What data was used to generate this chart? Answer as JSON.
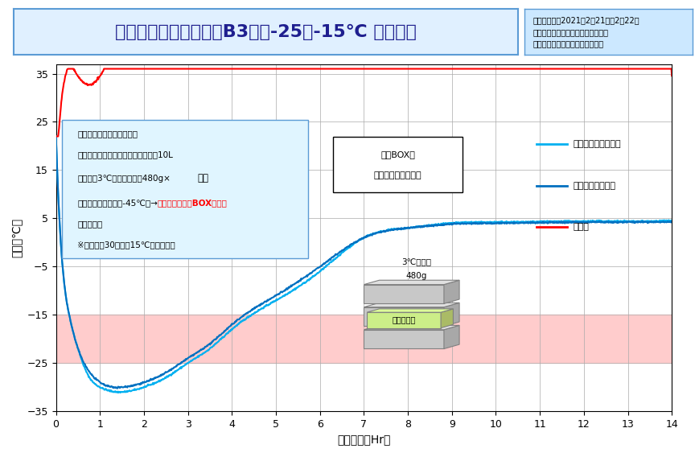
{
  "title": "定温輸送容器セット　B3案　-25～-15℃ 温度試験",
  "xlabel": "経過時間（Hr）",
  "ylabel": "温度（℃）",
  "xlim": [
    0,
    14
  ],
  "ylim": [
    -35,
    37
  ],
  "yticks": [
    -35,
    -25,
    -15,
    -5,
    5,
    15,
    25,
    35
  ],
  "xticks": [
    0,
    1,
    2,
    3,
    4,
    5,
    6,
    7,
    8,
    9,
    10,
    11,
    12,
    13,
    14
  ],
  "info_box": "試験実施日：2021年2月21日～2月22日\n試験実施場所　：　㈱スギヤマゲン\n試験実施者　：　㈱スギヤマゲン",
  "legend_center": "アルミ内箱内中心部",
  "legend_corner": "アルミ内箱内スミ",
  "legend_outside": "外気温",
  "color_center": "#00B0F0",
  "color_corner": "#0070C0",
  "color_outside": "#FF0000",
  "band_ymin": -25,
  "band_ymax": -15,
  "band_color": "#FFCCCC",
  "condition_box_title": "＜温度計測試験実施条件＞",
  "condition_box_line1": "使用ボックス　：　発泡ポックス　10L",
  "condition_box_line2": "保冷剤：3℃融点保冷剤　480g×",
  "condition_box_line2b": "６枚",
  "condition_box_line3a": "投入条件：冷凍庫（-45℃）→",
  "condition_box_line3b": "取り出し直後にBOX内投入",
  "condition_box_line4": "アルミ内箱",
  "condition_box_line5": "※内箱開始30分前に15℃冷蔵庫投入",
  "foam_box_label1": "発泡BOX内",
  "foam_box_label2": "保冷剤セッティング",
  "coolant_label1": "3℃保冷剤",
  "coolant_label2": "480g",
  "alumi_label": "アルミ内箱",
  "background_color": "#FFFFFF",
  "title_box_color": "#E0F0FF",
  "info_box_color": "#CCE8FF"
}
